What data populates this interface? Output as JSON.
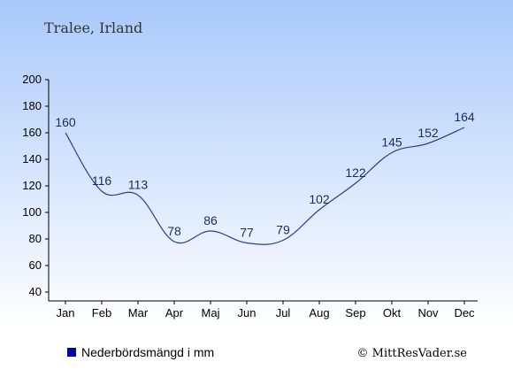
{
  "header": {
    "location": "Tralee, Irland"
  },
  "legend": {
    "label": "Nederbördsmängd i mm",
    "swatch_color": "#0000aa"
  },
  "footer": {
    "copyright": "© MittResVader.se"
  },
  "colors": {
    "bg_top": "#a9c9fb",
    "bg_bottom": "#ffffff",
    "line": "#2b3c96",
    "label": "#1a2b5a"
  },
  "chart_data": {
    "type": "line",
    "categories": [
      "Jan",
      "Feb",
      "Mar",
      "Apr",
      "Maj",
      "Jun",
      "Jul",
      "Aug",
      "Sep",
      "Okt",
      "Nov",
      "Dec"
    ],
    "series": [
      {
        "name": "Nederbördsmängd i mm",
        "values": [
          160,
          116,
          113,
          78,
          86,
          77,
          79,
          102,
          122,
          145,
          152,
          164
        ]
      }
    ],
    "ylim": [
      40,
      200
    ],
    "yticks": [
      40,
      60,
      80,
      100,
      120,
      140,
      160,
      180,
      200
    ],
    "grid": false,
    "legend_position": "bottom-left"
  }
}
